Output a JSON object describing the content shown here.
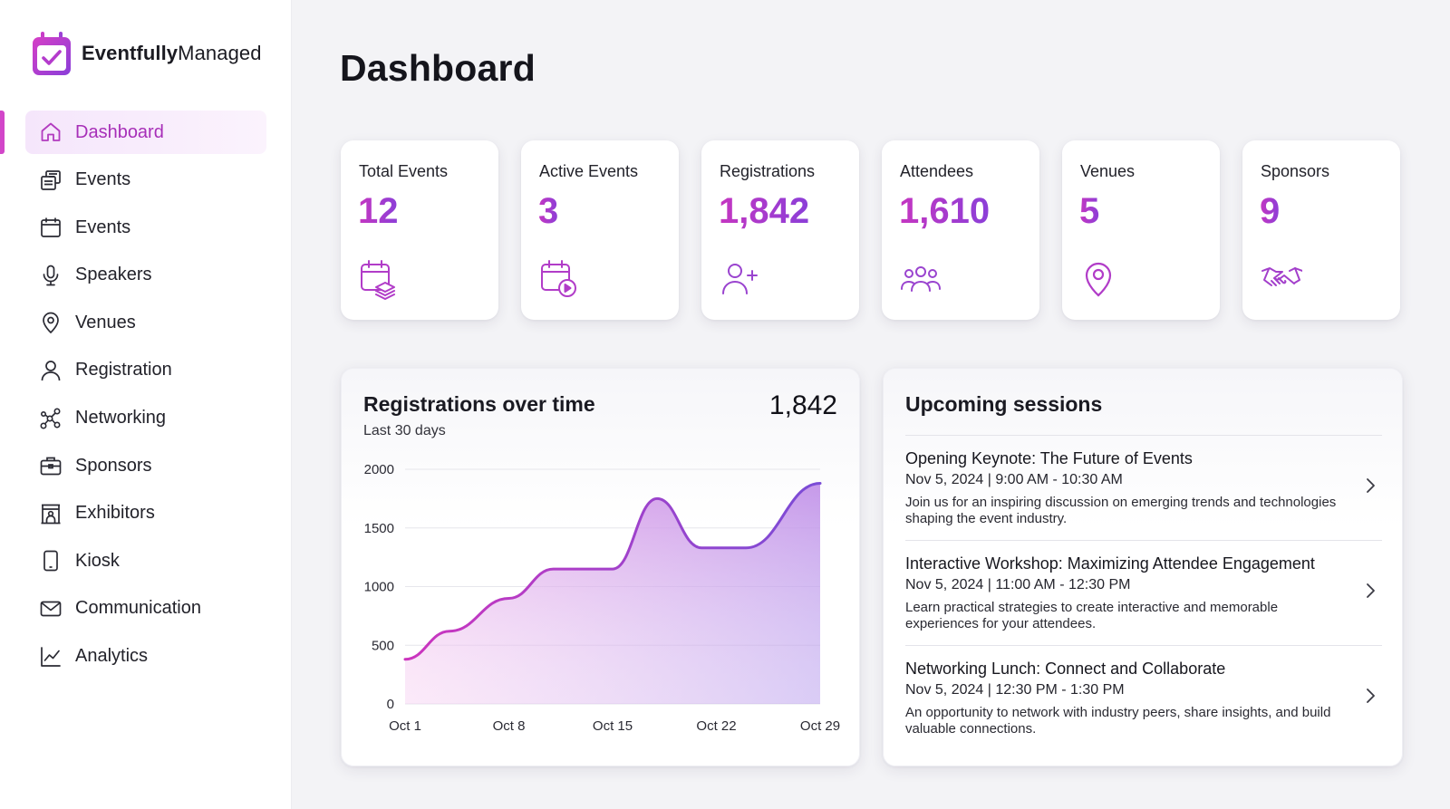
{
  "brand": {
    "name_bold": "Eventfully",
    "name_regular": "Managed",
    "logo_icon": "calendar-check-icon"
  },
  "nav": [
    {
      "label": "Dashboard",
      "icon": "home-icon",
      "active": true
    },
    {
      "label": "Events",
      "icon": "event-list-icon"
    },
    {
      "label": "Events",
      "icon": "calendar-icon"
    },
    {
      "label": "Speakers",
      "icon": "microphone-icon"
    },
    {
      "label": "Venues",
      "icon": "location-pin-icon"
    },
    {
      "label": "Registration",
      "icon": "user-icon"
    },
    {
      "label": "Networking",
      "icon": "network-icon"
    },
    {
      "label": "Sponsors",
      "icon": "briefcase-icon"
    },
    {
      "label": "Exhibitors",
      "icon": "booth-icon"
    },
    {
      "label": "Kiosk",
      "icon": "tablet-icon"
    },
    {
      "label": "Communication",
      "icon": "mail-icon"
    },
    {
      "label": "Analytics",
      "icon": "line-chart-icon"
    }
  ],
  "page": {
    "title": "Dashboard"
  },
  "stats": [
    {
      "label": "Total Events",
      "value": "12",
      "icon": "calendar-stack-icon"
    },
    {
      "label": "Active Events",
      "value": "3",
      "icon": "calendar-play-icon"
    },
    {
      "label": "Registrations",
      "value": "1,842",
      "icon": "user-add-icon"
    },
    {
      "label": "Attendees",
      "value": "1,610",
      "icon": "group-icon"
    },
    {
      "label": "Venues",
      "value": "5",
      "icon": "location-pin-icon"
    },
    {
      "label": "Sponsors",
      "value": "9",
      "icon": "handshake-icon"
    }
  ],
  "registrations_panel": {
    "title": "Registrations over time",
    "subtitle": "Last 30 days",
    "total": "1,842"
  },
  "chart_data": {
    "type": "area",
    "title": "Registrations over time",
    "subtitle": "Last 30 days",
    "x": [
      1,
      4,
      8,
      11,
      15,
      18,
      21,
      24,
      29
    ],
    "x_tick_labels": [
      "Oct 1",
      "Oct 8",
      "Oct 15",
      "Oct 22",
      "Oct 29"
    ],
    "x_tick_positions": [
      1,
      8,
      15,
      22,
      29
    ],
    "values": [
      380,
      620,
      900,
      1150,
      1150,
      1750,
      1330,
      1330,
      1880
    ],
    "yticks": [
      0,
      500,
      1000,
      1500,
      2000
    ],
    "ylim": [
      0,
      2000
    ],
    "xlim": [
      1,
      29
    ],
    "grid": true,
    "colors": {
      "line_start": "#cc35be",
      "line_end": "#7a4cd6",
      "fill_top": "#dca0ea",
      "fill_bottom": "#ffffff"
    }
  },
  "sessions_panel": {
    "title": "Upcoming sessions",
    "items": [
      {
        "title": "Opening Keynote: The Future of Events",
        "time": "Nov 5, 2024 | 9:00 AM - 10:30 AM",
        "description": "Join us for an inspiring discussion on emerging trends and technologies shaping the event industry."
      },
      {
        "title": "Interactive Workshop: Maximizing Attendee Engagement",
        "time": "Nov 5, 2024 | 11:00 AM - 12:30 PM",
        "description": "Learn practical strategies to create interactive and memorable experiences for your attendees."
      },
      {
        "title": "Networking Lunch: Connect and Collaborate",
        "time": "Nov 5, 2024 | 12:30 PM - 1:30 PM",
        "description": "An opportunity to network with industry peers, share insights, and build valuable connections."
      }
    ]
  },
  "colors": {
    "accent": "#c536c1",
    "accent_2": "#8b3fd8",
    "active_bg": "#f5e6fb",
    "text": "#1b1b22"
  }
}
